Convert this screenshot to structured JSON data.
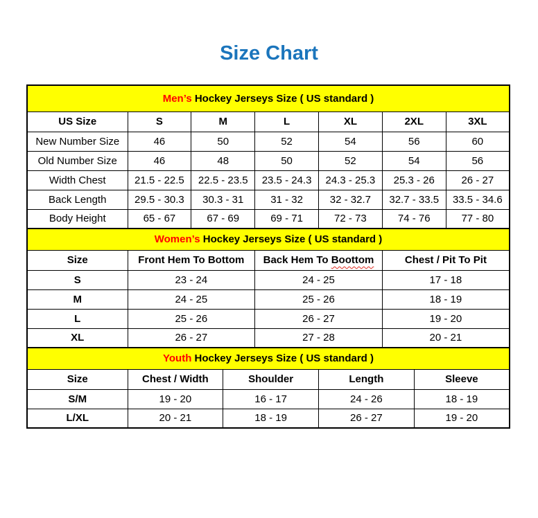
{
  "page_title": "Size Chart",
  "colors": {
    "title_blue": "#1b75bc",
    "banner_yellow": "#ffff00",
    "highlight_red": "#ff0000",
    "border_black": "#000000"
  },
  "chart_data": [
    {
      "type": "table",
      "name": "mens",
      "banner_highlight": "Men’s",
      "banner_rest": " Hockey Jerseys Size ( US standard )",
      "columns": [
        "US Size",
        "S",
        "M",
        "L",
        "XL",
        "2XL",
        "3XL"
      ],
      "rows": [
        [
          "New Number Size",
          "46",
          "50",
          "52",
          "54",
          "56",
          "60"
        ],
        [
          "Old Number Size",
          "46",
          "48",
          "50",
          "52",
          "54",
          "56"
        ],
        [
          "Width Chest",
          "21.5 - 22.5",
          "22.5 - 23.5",
          "23.5 - 24.3",
          "24.3 - 25.3",
          "25.3 - 26",
          "26 - 27"
        ],
        [
          "Back Length",
          "29.5 - 30.3",
          "30.3 - 31",
          "31 - 32",
          "32 - 32.7",
          "32.7 - 33.5",
          "33.5 - 34.6"
        ],
        [
          "Body Height",
          "65 - 67",
          "67 - 69",
          "69 - 71",
          "72 - 73",
          "74 - 76",
          "77 - 80"
        ]
      ]
    },
    {
      "type": "table",
      "name": "womens",
      "banner_highlight": "Women’s",
      "banner_rest": " Hockey Jerseys Size ( US standard )",
      "columns": [
        "Size",
        "Front Hem To Bottom",
        "Back Hem To Boottom",
        "Chest / Pit To Pit"
      ],
      "spellcheck_wavy": {
        "column_index": 2,
        "word": "Boottom"
      },
      "rows": [
        [
          "S",
          "23 - 24",
          "24 - 25",
          "17 - 18"
        ],
        [
          "M",
          "24 - 25",
          "25 - 26",
          "18 - 19"
        ],
        [
          "L",
          "25 - 26",
          "26 - 27",
          "19 - 20"
        ],
        [
          "XL",
          "26 - 27",
          "27 - 28",
          "20 - 21"
        ]
      ]
    },
    {
      "type": "table",
      "name": "youth",
      "banner_highlight": "Youth",
      "banner_rest": " Hockey Jerseys Size ( US standard )",
      "columns": [
        "Size",
        "Chest / Width",
        "Shoulder",
        "Length",
        "Sleeve"
      ],
      "rows": [
        [
          "S/M",
          "19 - 20",
          "16 - 17",
          "24 - 26",
          "18 - 19"
        ],
        [
          "L/XL",
          "20 - 21",
          "18 - 19",
          "26 - 27",
          "19 - 20"
        ]
      ]
    }
  ]
}
